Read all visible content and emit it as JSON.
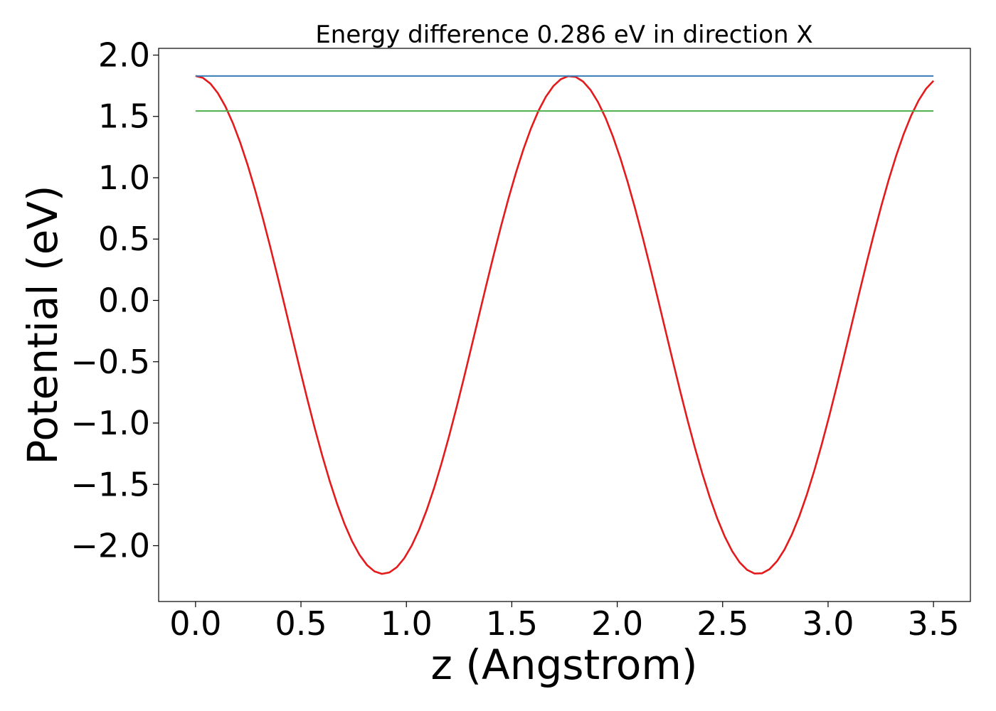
{
  "chart_data": {
    "type": "line",
    "title": "Energy difference 0.286 eV in direction X",
    "xlabel": "z (Angstrom)",
    "ylabel": "Potential (eV)",
    "xlim": [
      -0.175,
      3.675
    ],
    "ylim": [
      -2.455,
      2.055
    ],
    "xticks": [
      0.0,
      0.5,
      1.0,
      1.5,
      2.0,
      2.5,
      3.0,
      3.5
    ],
    "xtick_labels": [
      "0.0",
      "0.5",
      "1.0",
      "1.5",
      "2.0",
      "2.5",
      "3.0",
      "3.5"
    ],
    "yticks": [
      -2.0,
      -1.5,
      -1.0,
      -0.5,
      0.0,
      0.5,
      1.0,
      1.5,
      2.0
    ],
    "ytick_labels": [
      "−2.0",
      "−1.5",
      "−1.0",
      "−0.5",
      "0.0",
      "0.5",
      "1.0",
      "1.5",
      "2.0"
    ],
    "grid": false,
    "series": [
      {
        "kind": "curve",
        "color": "#e41a1c",
        "x_range": [
          0.0,
          3.5
        ],
        "period": 1.778,
        "mean": -0.2,
        "amplitude": 2.03,
        "points": 100
      },
      {
        "kind": "hline",
        "color": "#377eb8",
        "x_range": [
          0.0,
          3.5
        ],
        "y": 1.83
      },
      {
        "kind": "hline",
        "color": "#4daf4a",
        "x_range": [
          0.0,
          3.5
        ],
        "y": 1.544
      }
    ]
  }
}
